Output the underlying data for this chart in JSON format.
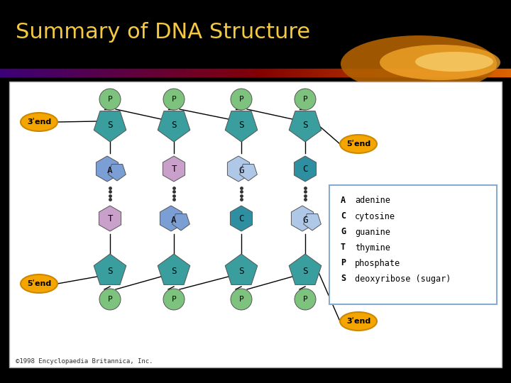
{
  "title": "Summary of DNA Structure",
  "title_color": "#F5C842",
  "bg_color": "#000000",
  "panel_bg": "#ffffff",
  "legend_entries": [
    [
      "A",
      "adenine"
    ],
    [
      "C",
      "cytosine"
    ],
    [
      "G",
      "guanine"
    ],
    [
      "T",
      "thymine"
    ],
    [
      "P",
      "phosphate"
    ],
    [
      "S",
      "deoxyribose (sugar)"
    ]
  ],
  "phosphate_color": "#7DC27D",
  "sugar_color": "#3A9E9E",
  "adenine_color": "#7B9FD4",
  "thymine_color": "#C9A0C9",
  "guanine_color": "#B0C8E8",
  "cytosine_color": "#2D8FA0",
  "end_color": "#F5A500",
  "copyright": "©1998 Encyclopaedia Britannica, Inc."
}
